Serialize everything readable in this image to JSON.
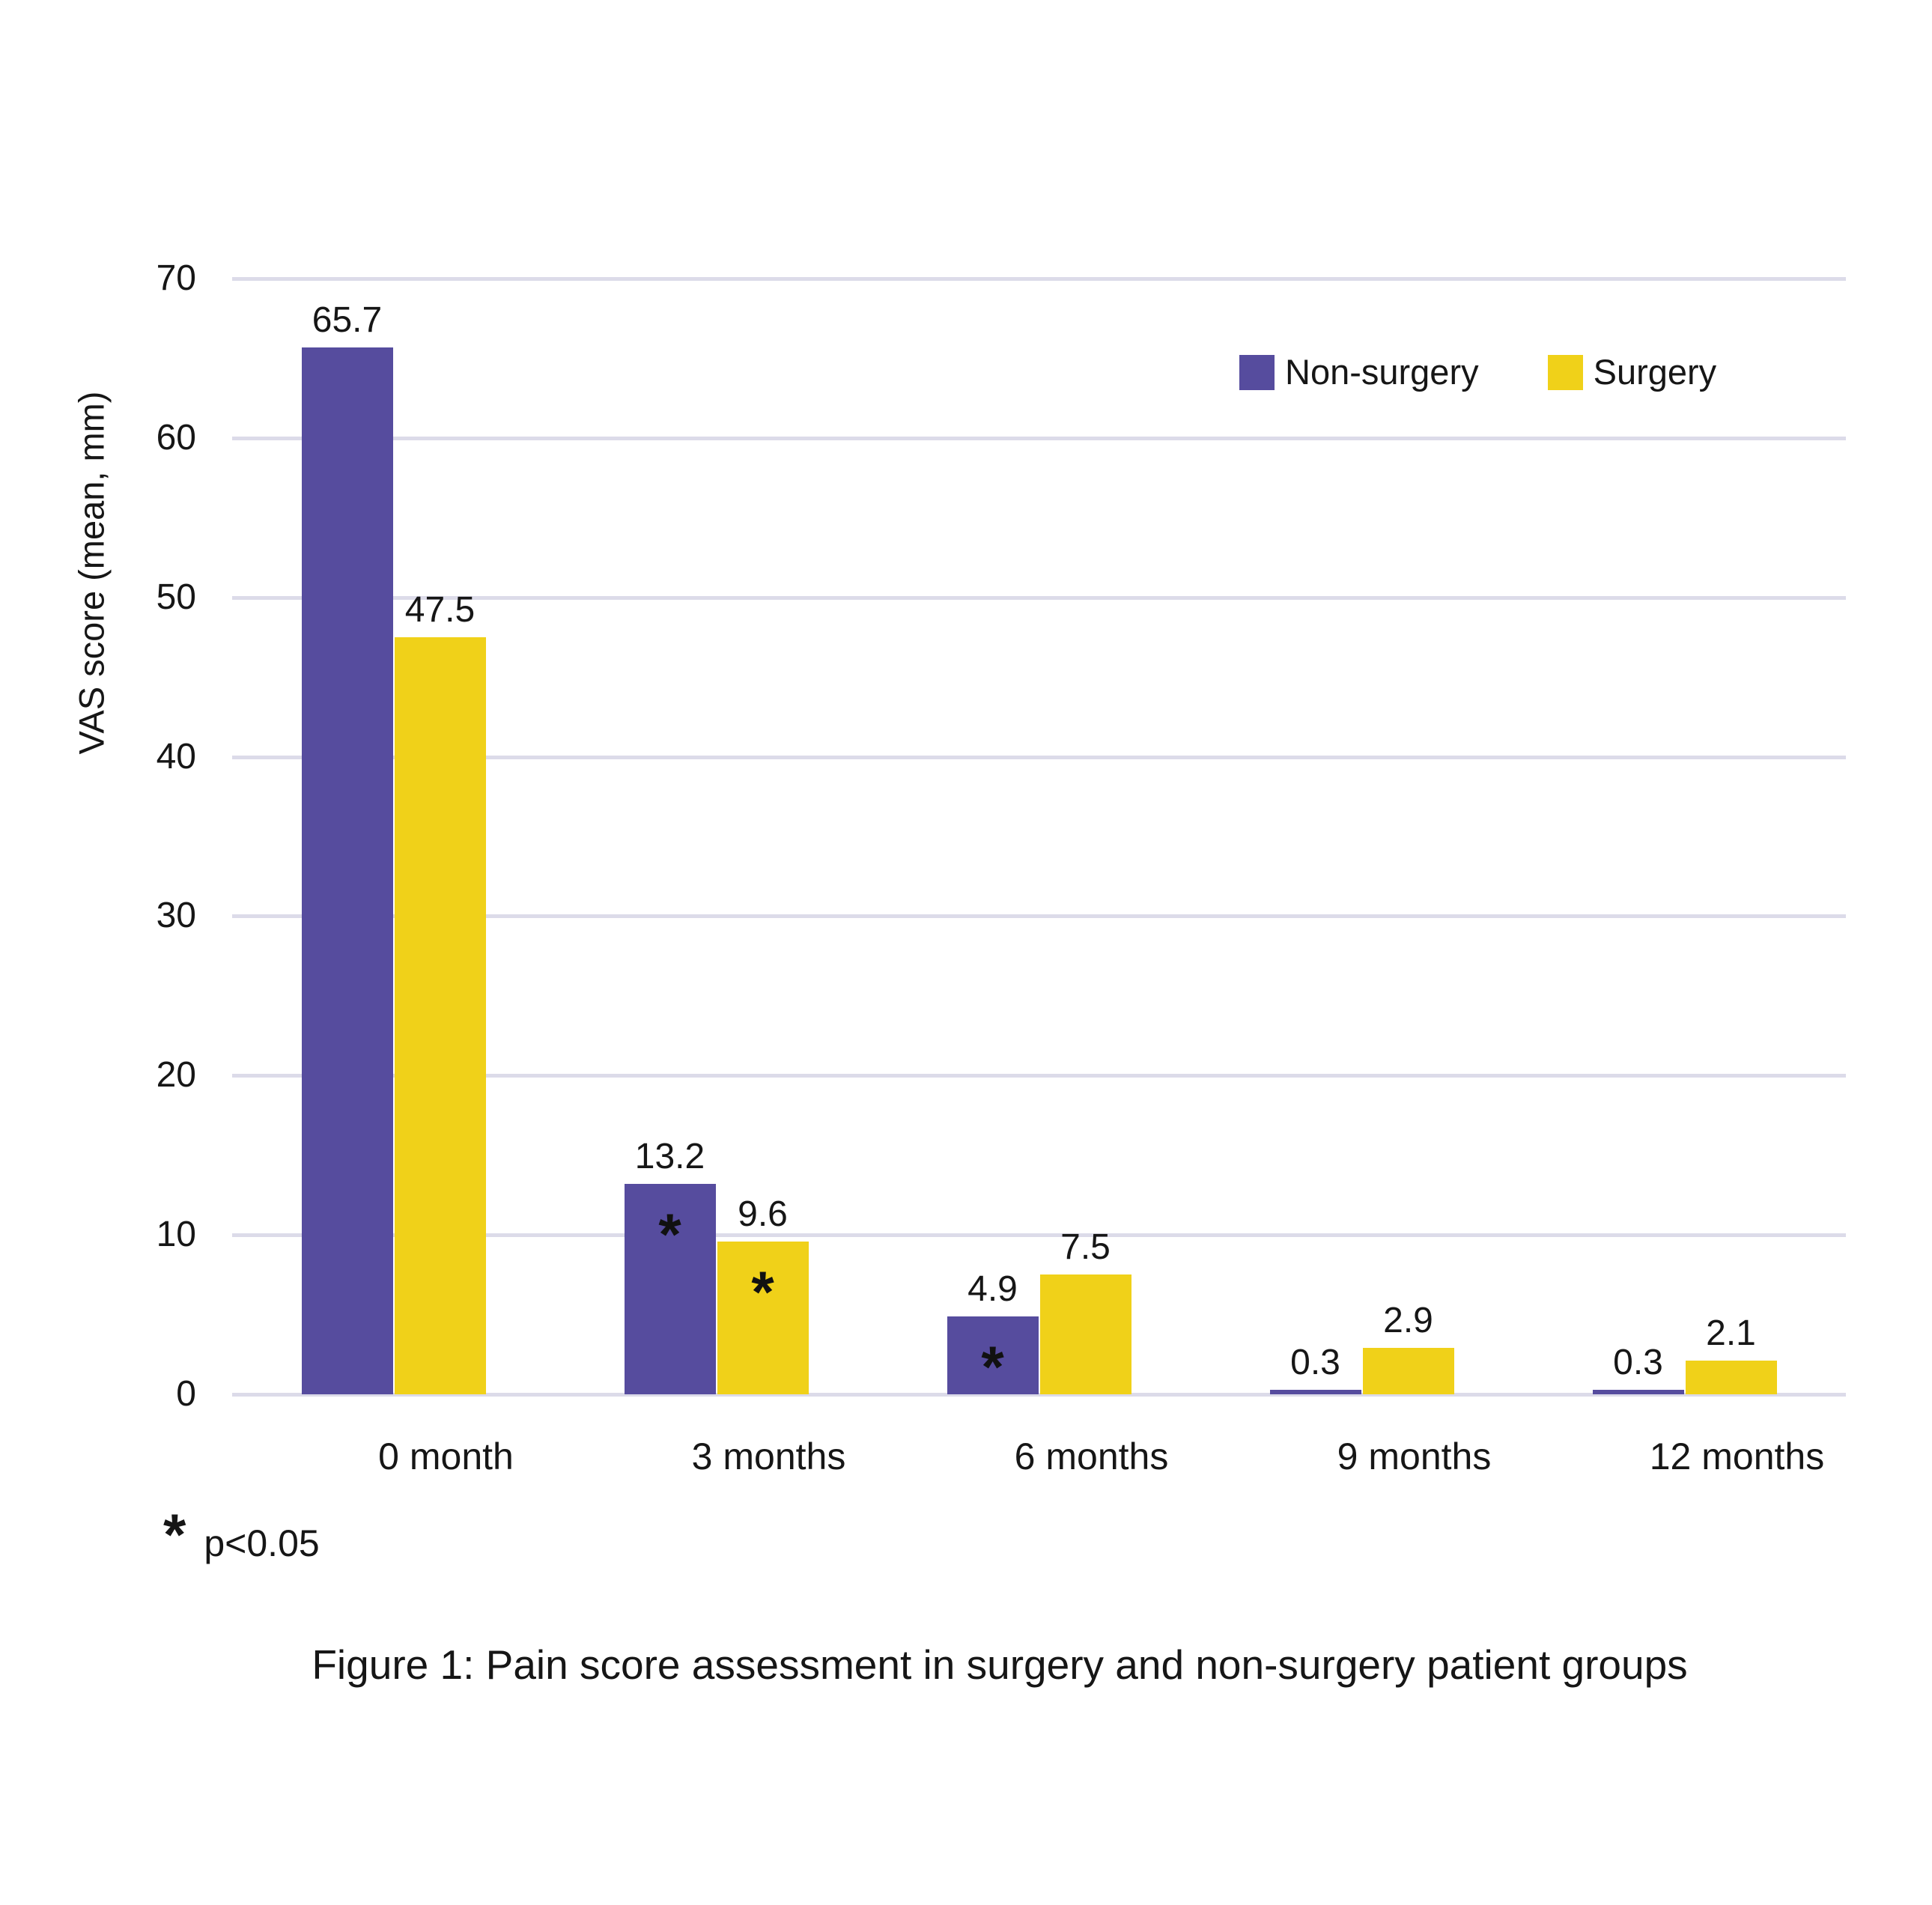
{
  "figure": {
    "caption": "Figure 1: Pain score assessment in surgery and non-surgery patient groups",
    "footnote": {
      "symbol": "*",
      "text": "p<0.05"
    }
  },
  "chart_data": {
    "type": "bar",
    "title": "",
    "xlabel": "",
    "ylabel": "VAS score (mean, mm)",
    "ylim": [
      0,
      70
    ],
    "ytick_step": 10,
    "grid": true,
    "legend_position": "top-right",
    "significance_marker": "*",
    "categories": [
      "0 month",
      "3 months",
      "6 months",
      "9 months",
      "12 months"
    ],
    "series": [
      {
        "name": "Non-surgery",
        "color": "#564c9e",
        "values": [
          65.7,
          13.2,
          4.9,
          0.3,
          0.3
        ],
        "significant": [
          false,
          true,
          true,
          false,
          false
        ]
      },
      {
        "name": "Surgery",
        "color": "#f0d119",
        "values": [
          47.5,
          9.6,
          7.5,
          2.9,
          2.1
        ],
        "significant": [
          false,
          true,
          false,
          false,
          false
        ]
      }
    ]
  },
  "colors": {
    "gridline": "#dcdbe9",
    "text": "#161616",
    "background": "#ffffff"
  }
}
